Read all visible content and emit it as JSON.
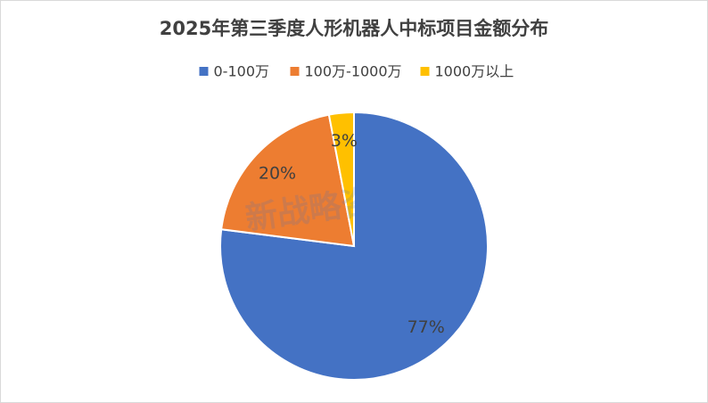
{
  "chart_data": {
    "type": "pie",
    "title": "2025年第三季度人形机器人中标项目金额分布",
    "categories": [
      "0-100万",
      "100万-1000万",
      "1000万以上"
    ],
    "values": [
      77,
      20,
      3
    ],
    "value_labels": [
      "77%",
      "20%",
      "3%"
    ],
    "colors": [
      "#4472c4",
      "#ed7d31",
      "#ffc000"
    ],
    "legend": "top",
    "watermark": "新战略咨询"
  }
}
